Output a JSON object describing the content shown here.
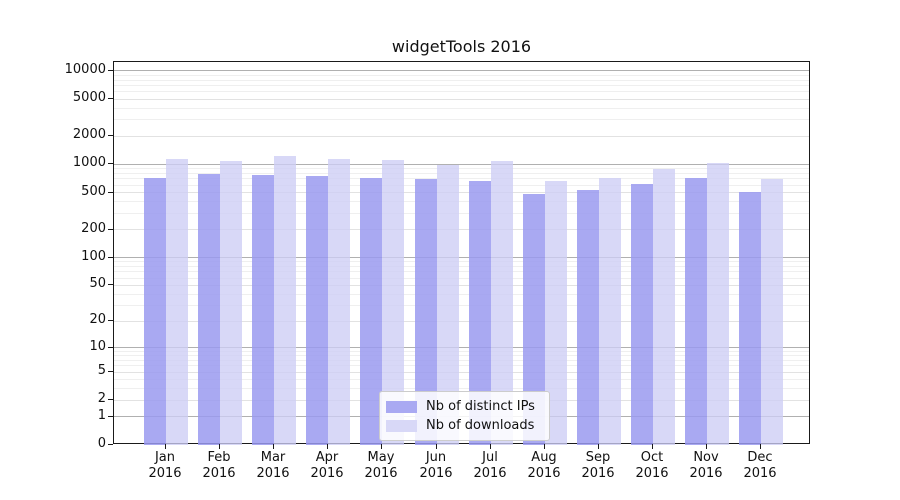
{
  "title": "widgetTools 2016",
  "chart_data": {
    "type": "bar",
    "title": "widgetTools 2016",
    "categories": [
      "Jan",
      "Feb",
      "Mar",
      "Apr",
      "May",
      "Jun",
      "Jul",
      "Aug",
      "Sep",
      "Oct",
      "Nov",
      "Dec"
    ],
    "year": "2016",
    "series": [
      {
        "name": "Nb of distinct IPs",
        "color": "rgba(154,154,240,0.85)",
        "legend_color": "#a9a9f2",
        "values": [
          716,
          790,
          772,
          752,
          716,
          700,
          666,
          484,
          532,
          618,
          716,
          508
        ]
      },
      {
        "name": "Nb of downloads",
        "color": "rgba(205,205,245,0.78)",
        "legend_color": "#d8d8f7",
        "values": [
          1146,
          1090,
          1233,
          1146,
          1117,
          988,
          1090,
          666,
          717,
          901,
          1038,
          700
        ]
      }
    ],
    "yscale": "log10(value+1)",
    "y_ticks": [
      0,
      1,
      2,
      5,
      10,
      20,
      50,
      100,
      200,
      500,
      1000,
      2000,
      5000,
      10000
    ],
    "ylim": [
      0,
      12500
    ],
    "xlabel": "",
    "ylabel": "",
    "grid": "horizontal; powers of 10 darker, other ticks and minors faint",
    "legend_position": "lower center"
  }
}
